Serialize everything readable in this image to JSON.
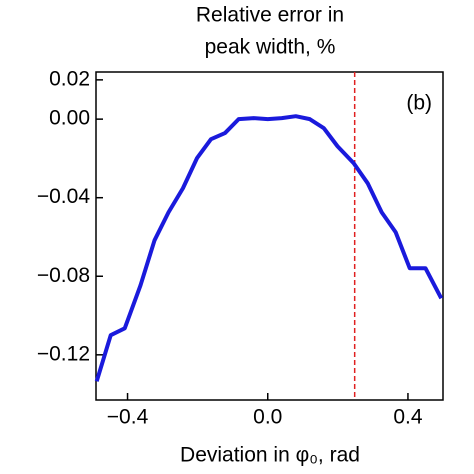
{
  "chart_data": {
    "type": "line",
    "title": [
      "Relative error in",
      "peak width, %"
    ],
    "x_label": "Deviation in φ₀, rad",
    "annotation": "(b)",
    "x": [
      -0.488,
      -0.448,
      -0.408,
      -0.363,
      -0.323,
      -0.283,
      -0.242,
      -0.202,
      -0.162,
      -0.122,
      -0.083,
      -0.04,
      0.0,
      0.04,
      0.08,
      0.12,
      0.16,
      0.199,
      0.245,
      0.285,
      0.325,
      0.365,
      0.405,
      0.45,
      0.495
    ],
    "series": [
      {
        "color": "#1a1adc",
        "values": [
          -0.1335,
          -0.11,
          -0.1065,
          -0.0846,
          -0.0617,
          -0.0474,
          -0.0352,
          -0.0199,
          -0.0102,
          -0.0071,
          0.0,
          0.0005,
          0.0,
          0.0005,
          0.0015,
          0.0,
          -0.0046,
          -0.0138,
          -0.0224,
          -0.0326,
          -0.0474,
          -0.0576,
          -0.0759,
          -0.0759,
          -0.0912
        ]
      }
    ],
    "vline": {
      "x": 0.248,
      "color": "#e02020"
    },
    "xlim": [
      -0.49,
      0.5
    ],
    "ylim": [
      -0.143,
      0.024
    ],
    "xticks": [
      {
        "value": -0.4,
        "label": "−0.4"
      },
      {
        "value": 0.0,
        "label": "0.0"
      },
      {
        "value": 0.4,
        "label": "0.4"
      }
    ],
    "yticks": [
      0.02,
      {
        "value": 0.0,
        "label": "0.00"
      },
      {
        "value": -0.04,
        "label": "−0.04"
      },
      {
        "value": -0.08,
        "label": "−0.08"
      },
      {
        "value": -0.12,
        "label": "−0.12"
      }
    ]
  }
}
